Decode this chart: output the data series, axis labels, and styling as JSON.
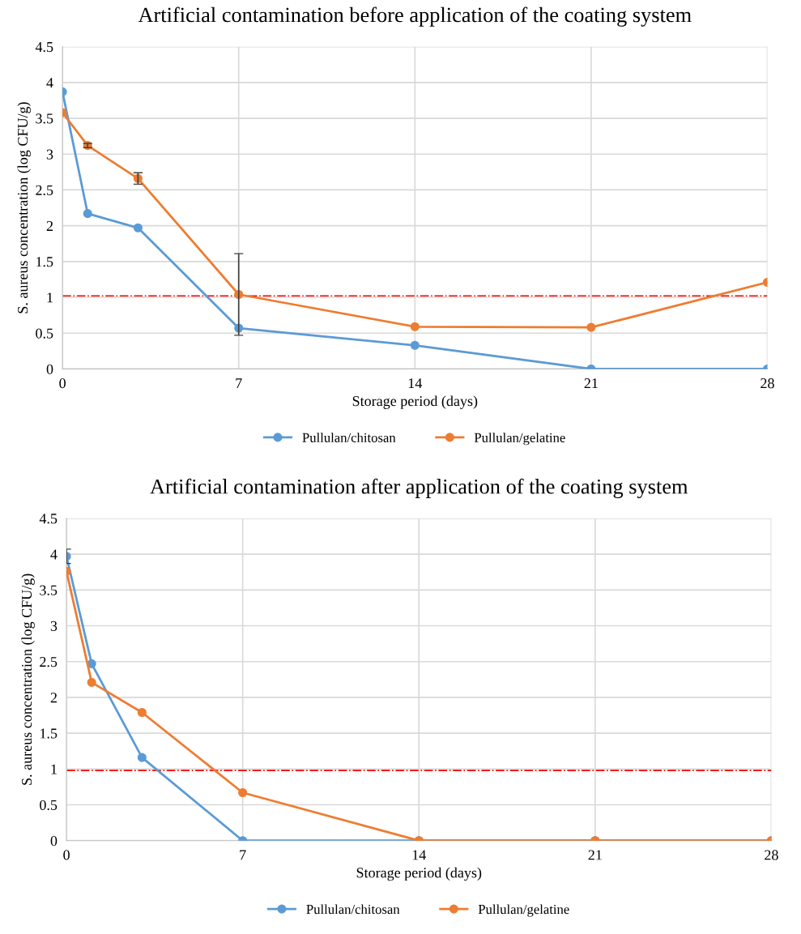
{
  "chart_data": [
    {
      "type": "line",
      "title": "Artificial contamination before application of the coating system",
      "xlabel": "Storage period (days)",
      "ylabel": "S. aureus concentration (log CFU/g)",
      "x": [
        0,
        1,
        3,
        7,
        14,
        21,
        28
      ],
      "series": [
        {
          "name": "Pullulan/chitosan",
          "color": "#5b9bd5",
          "values": [
            3.87,
            2.17,
            1.97,
            0.57,
            0.33,
            0,
            0
          ]
        },
        {
          "name": "Pullulan/gelatine",
          "color": "#ed7d31",
          "values": [
            3.58,
            3.12,
            2.66,
            1.04,
            0.59,
            0.58,
            1.21
          ],
          "errors": [
            null,
            0.03,
            0.08,
            0.57,
            null,
            null,
            null
          ]
        }
      ],
      "xlim": [
        0,
        28
      ],
      "xticks": [
        0,
        7,
        14,
        21,
        28
      ],
      "ylim": [
        0,
        4.5
      ],
      "yticks": [
        0,
        0.5,
        1,
        1.5,
        2,
        2.5,
        3,
        3.5,
        4,
        4.5
      ],
      "ref_lines": [
        {
          "axis": "y",
          "value": 1.02,
          "color": "#ff0000",
          "line_style": "dashdot"
        }
      ],
      "grid": true,
      "legend": "bottom",
      "marker": "circle",
      "line_style": "solid"
    },
    {
      "type": "line",
      "title": "Artificial contamination after application of the coating system",
      "xlabel": "Storage period (days)",
      "ylabel": "S. aureus concentration (log CFU/g)",
      "x": [
        0,
        1,
        3,
        7,
        14,
        21,
        28
      ],
      "series": [
        {
          "name": "Pullulan/chitosan",
          "color": "#5b9bd5",
          "values": [
            3.97,
            2.47,
            1.16,
            0,
            0,
            0,
            0
          ],
          "errors": [
            0.1,
            null,
            null,
            null,
            null,
            null,
            null
          ]
        },
        {
          "name": "Pullulan/gelatine",
          "color": "#ed7d31",
          "values": [
            3.76,
            2.21,
            1.79,
            0.67,
            0,
            0,
            0
          ]
        }
      ],
      "xlim": [
        0,
        28
      ],
      "xticks": [
        0,
        7,
        14,
        21,
        28
      ],
      "ylim": [
        0,
        4.5
      ],
      "yticks": [
        0,
        0.5,
        1,
        1.5,
        2,
        2.5,
        3,
        3.5,
        4,
        4.5
      ],
      "ref_lines": [
        {
          "axis": "y",
          "value": 0.98,
          "color": "#ff0000",
          "line_style": "dashdot"
        }
      ],
      "grid": true,
      "legend": "bottom",
      "marker": "circle",
      "line_style": "solid"
    }
  ]
}
